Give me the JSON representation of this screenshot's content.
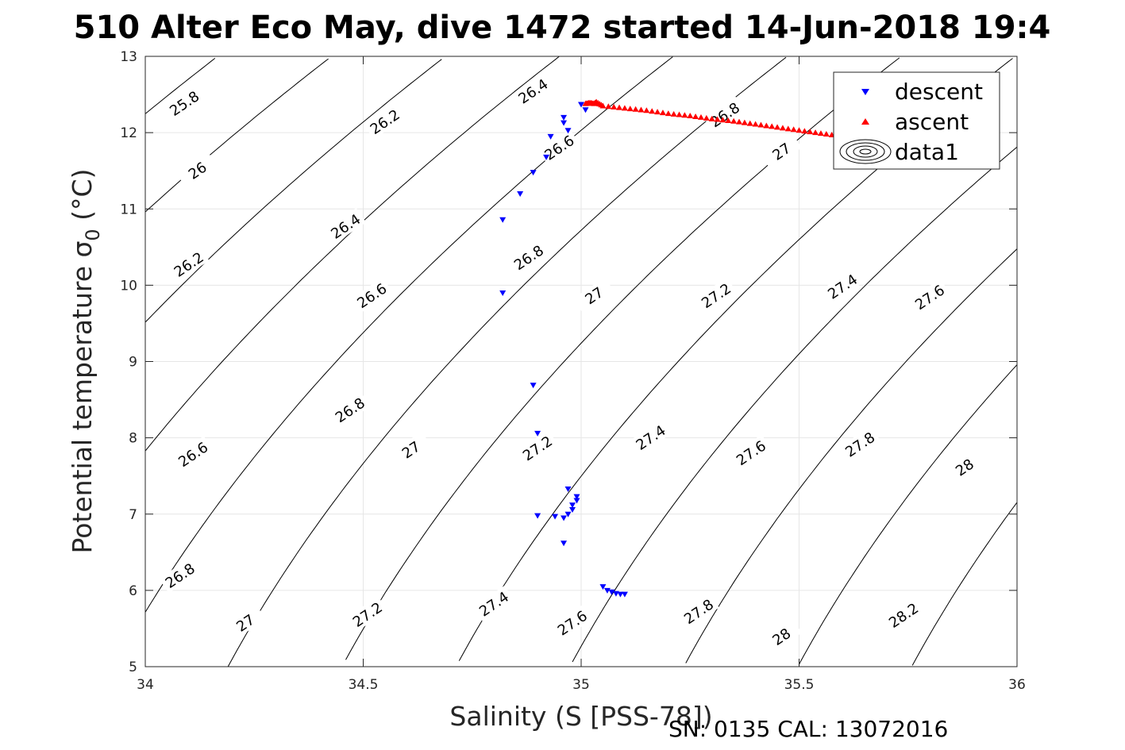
{
  "figure": {
    "title": "510 Alter Eco May, dive 1472 started 14-Jun-2018 19:4",
    "caption": "SN: 0135  CAL: 13072016"
  },
  "chart_data": {
    "type": "scatter",
    "title": "510 Alter Eco May, dive 1472 started 14-Jun-2018 19:4",
    "xlabel": "Salinity (S [PSS-78])",
    "ylabel_main": "Potential temperature σ",
    "ylabel_sub": "0",
    "ylabel_unit": "(°C)",
    "xlim": [
      34,
      36
    ],
    "ylim": [
      5,
      13
    ],
    "xticks": [
      34,
      34.5,
      35,
      35.5,
      36
    ],
    "xtick_labels": [
      "34",
      "34.5",
      "35",
      "35.5",
      "36"
    ],
    "yticks": [
      5,
      6,
      7,
      8,
      9,
      10,
      11,
      12,
      13
    ],
    "ytick_labels": [
      "5",
      "6",
      "7",
      "8",
      "9",
      "10",
      "11",
      "12",
      "13"
    ],
    "grid": true,
    "legend_position": "top-right",
    "colors": {
      "descent": "#0000ff",
      "ascent": "#ff0000",
      "contour": "#000000",
      "grid": "#e6e6e6"
    },
    "series": [
      {
        "name": "descent",
        "marker": "triangle-down",
        "color": "#0000ff",
        "points": [
          [
            35.0,
            12.37
          ],
          [
            35.01,
            12.3
          ],
          [
            34.96,
            12.2
          ],
          [
            34.96,
            12.13
          ],
          [
            34.97,
            12.03
          ],
          [
            34.93,
            11.95
          ],
          [
            34.92,
            11.68
          ],
          [
            34.89,
            11.48
          ],
          [
            34.86,
            11.2
          ],
          [
            34.82,
            10.86
          ],
          [
            34.82,
            9.9
          ],
          [
            34.89,
            8.69
          ],
          [
            34.9,
            8.06
          ],
          [
            34.97,
            7.33
          ],
          [
            34.99,
            7.23
          ],
          [
            34.99,
            7.18
          ],
          [
            34.98,
            7.12
          ],
          [
            34.98,
            7.06
          ],
          [
            34.97,
            7.0
          ],
          [
            34.96,
            6.95
          ],
          [
            34.94,
            6.97
          ],
          [
            34.9,
            6.98
          ],
          [
            34.96,
            6.62
          ],
          [
            35.05,
            6.05
          ],
          [
            35.06,
            6.0
          ],
          [
            35.07,
            5.98
          ],
          [
            35.08,
            5.96
          ],
          [
            35.09,
            5.95
          ],
          [
            35.1,
            5.95
          ]
        ]
      },
      {
        "name": "ascent",
        "marker": "triangle-up",
        "color": "#ff0000",
        "points": [
          [
            35.01,
            12.38
          ],
          [
            35.02,
            12.39
          ],
          [
            35.03,
            12.38
          ],
          [
            35.035,
            12.4
          ],
          [
            35.05,
            12.35
          ],
          [
            35.1,
            12.32
          ],
          [
            35.15,
            12.29
          ],
          [
            35.2,
            12.25
          ],
          [
            35.25,
            12.22
          ],
          [
            35.3,
            12.18
          ],
          [
            35.35,
            12.15
          ],
          [
            35.4,
            12.11
          ],
          [
            35.45,
            12.07
          ],
          [
            35.5,
            12.03
          ],
          [
            35.55,
            11.99
          ],
          [
            35.6,
            11.95
          ],
          [
            35.65,
            11.91
          ],
          [
            35.7,
            11.87
          ],
          [
            35.75,
            11.83
          ],
          [
            35.8,
            11.79
          ],
          [
            35.85,
            11.75
          ]
        ]
      },
      {
        "name": "data1",
        "marker": "contour"
      }
    ],
    "contour_levels": [
      25.8,
      26,
      26.2,
      26.4,
      26.6,
      26.8,
      27,
      27.2,
      27.4,
      27.6,
      27.8,
      28,
      28.2
    ],
    "contour_labels": [
      {
        "text": "25.8",
        "s": 34.09,
        "t": 12.38,
        "angle": -34
      },
      {
        "text": "26",
        "s": 34.12,
        "t": 11.5,
        "angle": -34
      },
      {
        "text": "26.2",
        "s": 34.55,
        "t": 12.14,
        "angle": -34
      },
      {
        "text": "26.2",
        "s": 34.1,
        "t": 10.27,
        "angle": -34
      },
      {
        "text": "26.4",
        "s": 34.89,
        "t": 12.54,
        "angle": -34
      },
      {
        "text": "26.4",
        "s": 34.46,
        "t": 10.77,
        "angle": -34
      },
      {
        "text": "26.6",
        "s": 34.95,
        "t": 11.8,
        "angle": -34
      },
      {
        "text": "26.6",
        "s": 34.52,
        "t": 9.86,
        "angle": -34
      },
      {
        "text": "26.6",
        "s": 34.11,
        "t": 7.78,
        "angle": -34
      },
      {
        "text": "26.8",
        "s": 35.33,
        "t": 12.23,
        "angle": -34
      },
      {
        "text": "26.8",
        "s": 34.88,
        "t": 10.36,
        "angle": -34
      },
      {
        "text": "26.8",
        "s": 34.47,
        "t": 8.36,
        "angle": -34
      },
      {
        "text": "26.8",
        "s": 34.08,
        "t": 6.19,
        "angle": -34
      },
      {
        "text": "27",
        "s": 35.46,
        "t": 11.75,
        "angle": -34
      },
      {
        "text": "27",
        "s": 35.03,
        "t": 9.86,
        "angle": -34
      },
      {
        "text": "27",
        "s": 34.61,
        "t": 7.84,
        "angle": -34
      },
      {
        "text": "27",
        "s": 34.23,
        "t": 5.57,
        "angle": -34
      },
      {
        "text": "27.2",
        "s": 35.31,
        "t": 9.86,
        "angle": -34
      },
      {
        "text": "27.2",
        "s": 34.9,
        "t": 7.86,
        "angle": -34
      },
      {
        "text": "27.2",
        "s": 34.51,
        "t": 5.68,
        "angle": -34
      },
      {
        "text": "27.4",
        "s": 35.6,
        "t": 9.98,
        "angle": -34
      },
      {
        "text": "27.4",
        "s": 35.16,
        "t": 8.0,
        "angle": -34
      },
      {
        "text": "27.4",
        "s": 34.8,
        "t": 5.82,
        "angle": -34
      },
      {
        "text": "27.6",
        "s": 35.8,
        "t": 9.84,
        "angle": -34
      },
      {
        "text": "27.6",
        "s": 35.39,
        "t": 7.8,
        "angle": -34
      },
      {
        "text": "27.6",
        "s": 34.98,
        "t": 5.57,
        "angle": -34
      },
      {
        "text": "27.8",
        "s": 35.64,
        "t": 7.91,
        "angle": -34
      },
      {
        "text": "27.8",
        "s": 35.27,
        "t": 5.72,
        "angle": -34
      },
      {
        "text": "28",
        "s": 35.88,
        "t": 7.61,
        "angle": -34
      },
      {
        "text": "28",
        "s": 35.46,
        "t": 5.39,
        "angle": -34
      },
      {
        "text": "28.2",
        "s": 35.74,
        "t": 5.67,
        "angle": -34
      }
    ]
  }
}
